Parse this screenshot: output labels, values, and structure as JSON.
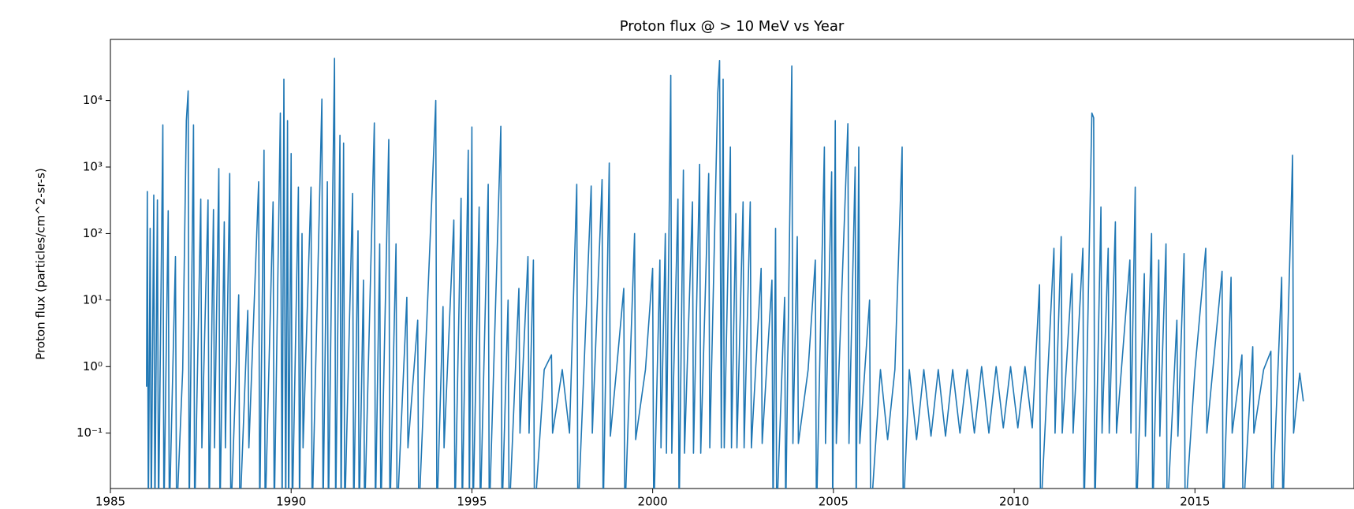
{
  "chart_data": {
    "type": "line",
    "title": "Proton flux @ > 10 MeV vs Year",
    "y_label": "Proton flux (particles/cm^2-sr-s)",
    "yscale": "log",
    "xlim": [
      1985,
      2019.4
    ],
    "xticks": [
      1985,
      1990,
      1995,
      2000,
      2005,
      2010,
      2015
    ],
    "ylim": [
      0.0147,
      83000
    ],
    "yticks": [
      {
        "value": 0.1,
        "label": "10⁻¹"
      },
      {
        "value": 1,
        "label": "10⁰"
      },
      {
        "value": 10,
        "label": "10¹"
      },
      {
        "value": 100,
        "label": "10²"
      },
      {
        "value": 1000,
        "label": "10³"
      },
      {
        "value": 10000,
        "label": "10⁴"
      }
    ],
    "x": [
      1986.0,
      1986.02,
      1986.05,
      1986.1,
      1986.13,
      1986.2,
      1986.23,
      1986.3,
      1986.33,
      1986.45,
      1986.48,
      1986.6,
      1986.63,
      1986.8,
      1986.83,
      1987.0,
      1987.1,
      1987.15,
      1987.18,
      1987.3,
      1987.33,
      1987.5,
      1987.53,
      1987.7,
      1987.73,
      1987.85,
      1987.88,
      1988.0,
      1988.03,
      1988.15,
      1988.18,
      1988.3,
      1988.33,
      1988.55,
      1988.58,
      1988.8,
      1988.83,
      1989.1,
      1989.13,
      1989.25,
      1989.28,
      1989.5,
      1989.53,
      1989.7,
      1989.75,
      1989.8,
      1989.85,
      1989.9,
      1989.93,
      1990.0,
      1990.03,
      1990.2,
      1990.23,
      1990.3,
      1990.33,
      1990.55,
      1990.58,
      1990.85,
      1990.88,
      1991.0,
      1991.03,
      1991.2,
      1991.23,
      1991.35,
      1991.38,
      1991.45,
      1991.48,
      1991.7,
      1991.73,
      1991.85,
      1991.88,
      1992.0,
      1992.03,
      1992.3,
      1992.33,
      1992.45,
      1992.48,
      1992.7,
      1992.73,
      1992.9,
      1992.93,
      1993.2,
      1993.23,
      1993.5,
      1993.53,
      1994.0,
      1994.03,
      1994.2,
      1994.23,
      1994.5,
      1994.53,
      1994.7,
      1994.73,
      1994.9,
      1994.93,
      1995.0,
      1995.03,
      1995.2,
      1995.23,
      1995.45,
      1995.48,
      1995.8,
      1995.83,
      1996.0,
      1996.03,
      1996.3,
      1996.33,
      1996.55,
      1996.58,
      1996.7,
      1996.73,
      1997.0,
      1997.2,
      1997.23,
      1997.5,
      1997.7,
      1997.9,
      1997.93,
      1998.1,
      1998.3,
      1998.33,
      1998.6,
      1998.63,
      1998.8,
      1998.83,
      1999.0,
      1999.2,
      1999.23,
      1999.5,
      1999.53,
      1999.8,
      2000.0,
      2000.03,
      2000.2,
      2000.23,
      2000.35,
      2000.38,
      2000.5,
      2000.53,
      2000.7,
      2000.73,
      2000.85,
      2000.88,
      2001.1,
      2001.13,
      2001.3,
      2001.33,
      2001.55,
      2001.58,
      2001.8,
      2001.85,
      2001.9,
      2001.95,
      2001.98,
      2002.15,
      2002.18,
      2002.3,
      2002.33,
      2002.5,
      2002.53,
      2002.7,
      2002.73,
      2003.0,
      2003.03,
      2003.3,
      2003.33,
      2003.4,
      2003.43,
      2003.65,
      2003.68,
      2003.85,
      2003.88,
      2004.0,
      2004.03,
      2004.3,
      2004.5,
      2004.53,
      2004.75,
      2004.78,
      2004.95,
      2004.98,
      2005.05,
      2005.08,
      2005.4,
      2005.43,
      2005.6,
      2005.63,
      2005.7,
      2005.73,
      2006.0,
      2006.03,
      2006.3,
      2006.5,
      2006.7,
      2006.9,
      2006.93,
      2007.1,
      2007.3,
      2007.5,
      2007.7,
      2007.9,
      2008.1,
      2008.3,
      2008.5,
      2008.7,
      2008.9,
      2009.1,
      2009.3,
      2009.5,
      2009.7,
      2009.9,
      2010.1,
      2010.3,
      2010.5,
      2010.7,
      2010.73,
      2011.1,
      2011.13,
      2011.3,
      2011.33,
      2011.6,
      2011.63,
      2011.9,
      2011.93,
      2012.15,
      2012.2,
      2012.23,
      2012.4,
      2012.43,
      2012.6,
      2012.63,
      2012.8,
      2012.83,
      2013.2,
      2013.23,
      2013.35,
      2013.38,
      2013.6,
      2013.63,
      2013.8,
      2013.83,
      2014.0,
      2014.03,
      2014.2,
      2014.23,
      2014.5,
      2014.53,
      2014.7,
      2014.73,
      2015.0,
      2015.3,
      2015.33,
      2015.75,
      2015.78,
      2016.0,
      2016.03,
      2016.3,
      2016.33,
      2016.6,
      2016.63,
      2016.9,
      2017.1,
      2017.13,
      2017.4,
      2017.43,
      2017.7,
      2017.73,
      2017.9,
      2018.0
    ],
    "series": [
      {
        "color": "#1f77b4",
        "values": [
          0.5,
          430,
          0.005,
          120,
          0.005,
          380,
          0.005,
          320,
          0.005,
          4300,
          0.005,
          220,
          0.005,
          45,
          0.005,
          0.9,
          5000,
          14000,
          0.005,
          4300,
          0.005,
          330,
          0.06,
          320,
          0.005,
          230,
          0.06,
          950,
          0.005,
          150,
          0.06,
          800,
          0.005,
          12,
          0.005,
          7,
          0.06,
          600,
          0.005,
          1800,
          0.005,
          300,
          0.005,
          6500,
          0.005,
          21000,
          0.005,
          5000,
          0.005,
          1600,
          0.005,
          500,
          0.005,
          100,
          0.06,
          500,
          0.005,
          10500,
          0.005,
          600,
          0.005,
          43000,
          0.005,
          3000,
          0.005,
          2300,
          0.005,
          400,
          0.005,
          110,
          0.005,
          20,
          0.005,
          4600,
          0.005,
          70,
          0.005,
          2600,
          0.005,
          70,
          0.005,
          11,
          0.06,
          5,
          0.005,
          10000,
          0.005,
          8,
          0.06,
          160,
          0.005,
          340,
          0.005,
          1800,
          0.005,
          4000,
          0.005,
          250,
          0.005,
          550,
          0.005,
          4100,
          0.005,
          10,
          0.005,
          15,
          0.1,
          45,
          0.1,
          40,
          0.005,
          0.9,
          1.5,
          0.1,
          0.9,
          0.1,
          550,
          0.005,
          0.9,
          520,
          0.1,
          650,
          0.005,
          1150,
          0.09,
          0.9,
          15,
          0.005,
          100,
          0.08,
          0.9,
          30,
          0.005,
          40,
          0.06,
          100,
          0.05,
          24000,
          0.05,
          330,
          0.005,
          900,
          0.05,
          300,
          0.05,
          1100,
          0.05,
          800,
          0.06,
          13000,
          40000,
          0.06,
          21000,
          0.06,
          2000,
          0.06,
          200,
          0.06,
          300,
          0.06,
          300,
          0.06,
          30,
          0.07,
          20,
          0.005,
          120,
          0.005,
          11,
          0.005,
          33000,
          0.07,
          90,
          0.07,
          0.9,
          40,
          0.005,
          2000,
          0.07,
          850,
          0.005,
          5000,
          0.07,
          4500,
          0.07,
          1000,
          0.005,
          2000,
          0.07,
          10,
          0.005,
          0.9,
          0.08,
          0.9,
          2000,
          0.005,
          0.9,
          0.08,
          0.9,
          0.09,
          0.9,
          0.09,
          0.9,
          0.1,
          0.9,
          0.1,
          1,
          0.1,
          1,
          0.12,
          1,
          0.12,
          1,
          0.12,
          17,
          0.005,
          60,
          0.1,
          90,
          0.1,
          25,
          0.1,
          60,
          0.005,
          6500,
          5500,
          0.005,
          250,
          0.1,
          60,
          0.1,
          150,
          0.1,
          40,
          0.1,
          500,
          0.005,
          25,
          0.09,
          100,
          0.005,
          40,
          0.09,
          70,
          0.005,
          5,
          0.09,
          50,
          0.005,
          0.9,
          60,
          0.1,
          27,
          0.005,
          22,
          0.1,
          1.5,
          0.005,
          2,
          0.1,
          0.9,
          1.7,
          0.005,
          22,
          0.005,
          1500,
          0.1,
          0.8,
          0.3
        ]
      }
    ]
  }
}
